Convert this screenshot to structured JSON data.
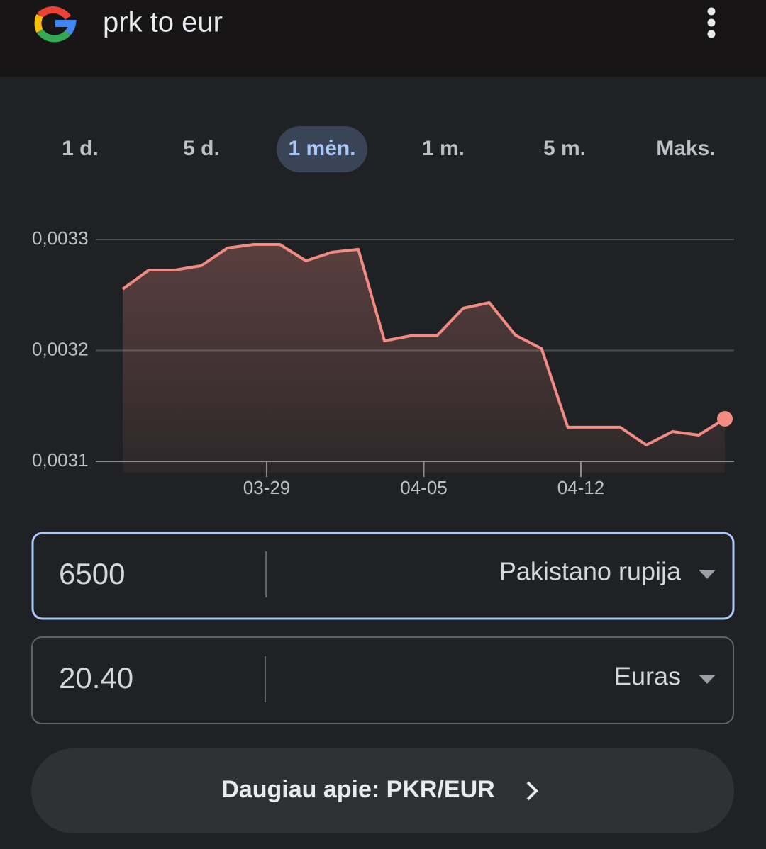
{
  "search": {
    "query": "prk to eur"
  },
  "ranges": {
    "items": [
      "1 d.",
      "5 d.",
      "1 mėn.",
      "1 m.",
      "5 m.",
      "Maks."
    ],
    "selected": 2
  },
  "chart_data": {
    "type": "line",
    "color": "#f28b82",
    "x": [
      0,
      1,
      2,
      3,
      4,
      5,
      6,
      7,
      8,
      9,
      10,
      11,
      12,
      13,
      14,
      15,
      16,
      17,
      18,
      19,
      20,
      21,
      22,
      23
    ],
    "values": [
      0.0032553,
      0.0032725,
      0.0032725,
      0.0032764,
      0.0032923,
      0.0032955,
      0.0032955,
      0.0032808,
      0.0032885,
      0.0032911,
      0.0032086,
      0.0032131,
      0.0032131,
      0.003238,
      0.0032431,
      0.0032137,
      0.0032016,
      0.0031307,
      0.0031307,
      0.0031307,
      0.0031147,
      0.0031268,
      0.0031236,
      0.0031383
    ],
    "xlim": [
      0,
      23
    ],
    "xticks": [
      {
        "value": 5.5,
        "label": "03-29"
      },
      {
        "value": 11.5,
        "label": "04-05"
      },
      {
        "value": 17.5,
        "label": "04-12"
      }
    ],
    "ylim": [
      0.00309,
      0.00333
    ],
    "yticks": [
      {
        "value": 0.0031,
        "label": "0,0031"
      },
      {
        "value": 0.0032,
        "label": "0,0032"
      },
      {
        "value": 0.0033,
        "label": "0,0033"
      }
    ],
    "grid": true
  },
  "converter": {
    "from": {
      "amount": "6500",
      "currency": "Pakistano rupija"
    },
    "to": {
      "amount": "20.40",
      "currency": "Euras"
    }
  },
  "more_button": {
    "label": "Daugiau apie: PKR/EUR"
  }
}
